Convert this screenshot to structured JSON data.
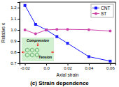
{
  "chart_data": {
    "type": "line",
    "title": "(c) Strain dependence",
    "xlabel": "Axial strain",
    "ylabel": "Relative κ",
    "x": [
      -0.02,
      -0.01,
      0.0,
      0.01,
      0.02,
      0.04,
      0.06
    ],
    "series": [
      {
        "name": "CNT",
        "color": "#1a1aff",
        "marker": "square",
        "values": [
          1.22,
          1.05,
          1.0,
          0.94,
          0.88,
          0.76,
          0.72
        ]
      },
      {
        "name": "ST",
        "color": "#cc44aa",
        "marker": "circle",
        "values": [
          1.0,
          0.965,
          1.0,
          1.005,
          1.005,
          1.002,
          0.99
        ]
      }
    ],
    "xlim": [
      -0.025,
      0.065
    ],
    "ylim": [
      0.7,
      1.25
    ],
    "xticks": [
      -0.02,
      {
        "value": 0.0,
        "label": "0.0"
      },
      0.02,
      0.04,
      0.06
    ],
    "yticks": [
      0.7,
      0.8,
      0.9,
      {
        "value": 1.0,
        "label": "1.0"
      },
      1.1,
      1.2
    ],
    "annotations": [
      "Compression",
      "Tension"
    ],
    "legend": "upper right",
    "grid": false
  }
}
